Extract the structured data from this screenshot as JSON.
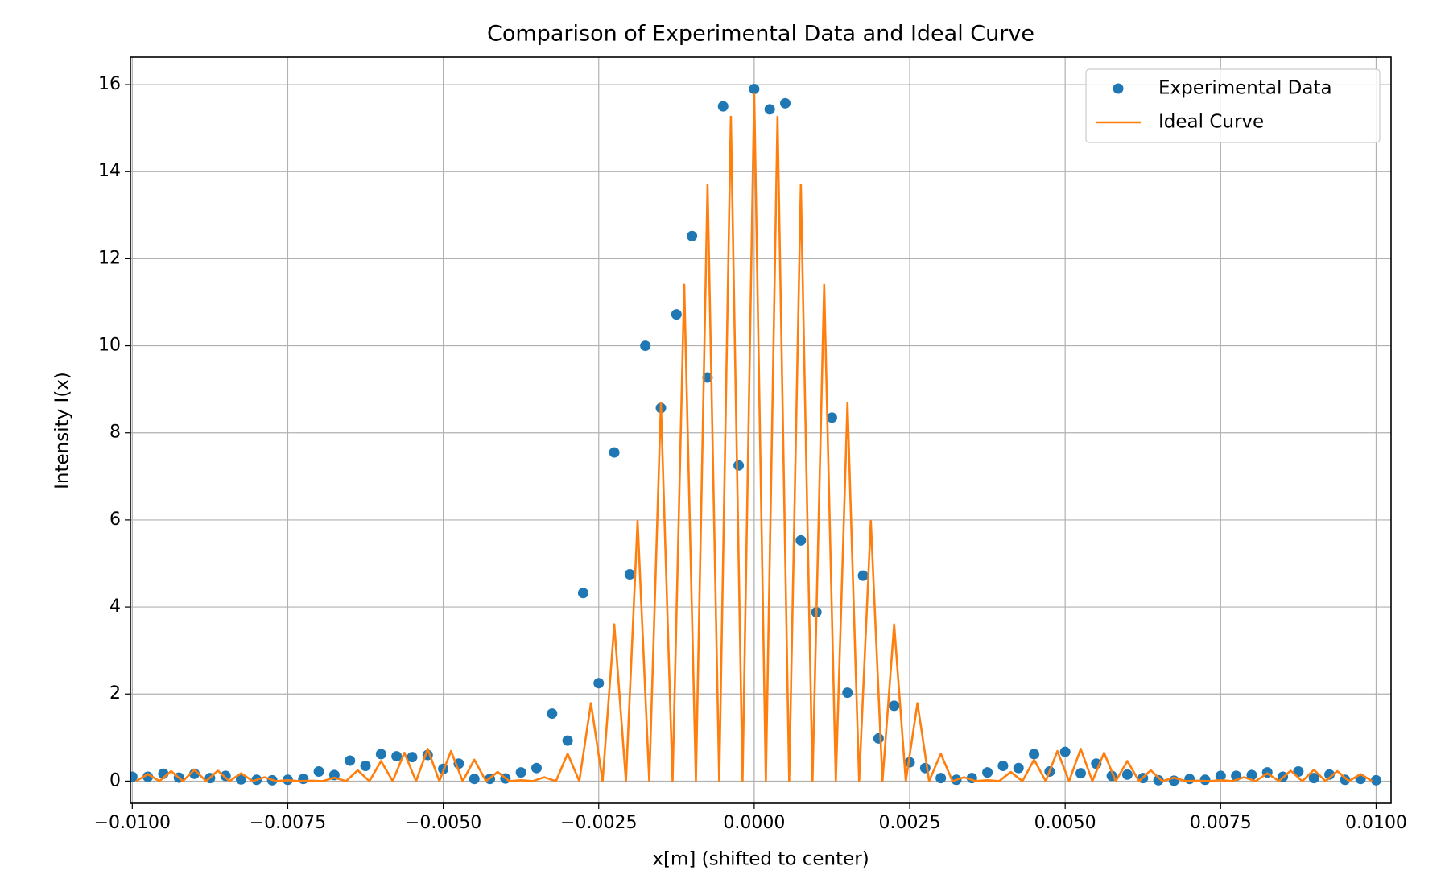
{
  "chart_data": {
    "type": "line",
    "title": "Comparison of Experimental Data and Ideal Curve",
    "x_label": "x[m] (shifted to center)",
    "y_label": "Intensity I(x)",
    "xlim": [
      -0.01003,
      0.01024
    ],
    "ylim": [
      -0.51,
      16.63
    ],
    "xticks": [
      {
        "value": -0.01,
        "label": "−0.0100"
      },
      {
        "value": -0.0075,
        "label": "−0.0075"
      },
      {
        "value": -0.005,
        "label": "−0.0050"
      },
      {
        "value": -0.0025,
        "label": "−0.0025"
      },
      {
        "value": 0,
        "label": "0.0000"
      },
      {
        "value": 0.0025,
        "label": "0.0025"
      },
      {
        "value": 0.005,
        "label": "0.0050"
      },
      {
        "value": 0.0075,
        "label": "0.0075"
      },
      {
        "value": 0.01,
        "label": "0.0100"
      }
    ],
    "yticks": [
      0,
      2,
      4,
      6,
      8,
      10,
      12,
      14,
      16
    ],
    "grid": true,
    "legend": "upper right",
    "series": [
      {
        "name": "Experimental Data",
        "color": "#1f77b4",
        "mode": "markers",
        "x": [
          -0.01,
          -0.00975,
          -0.0095,
          -0.00925,
          -0.009,
          -0.00875,
          -0.0085,
          -0.00825,
          -0.008,
          -0.00775,
          -0.0075,
          -0.00725,
          -0.007,
          -0.00675,
          -0.0065,
          -0.00625,
          -0.006,
          -0.00575,
          -0.0055,
          -0.00525,
          -0.005,
          -0.00475,
          -0.0045,
          -0.00425,
          -0.004,
          -0.00375,
          -0.0035,
          -0.00325,
          -0.003,
          -0.00275,
          -0.0025,
          -0.00225,
          -0.002,
          -0.00175,
          -0.0015,
          -0.00125,
          -0.001,
          -0.00075,
          -0.0005,
          -0.00025,
          0,
          0.00025,
          0.0005,
          0.00075,
          0.001,
          0.00125,
          0.0015,
          0.00175,
          0.002,
          0.00225,
          0.0025,
          0.00275,
          0.003,
          0.00325,
          0.0035,
          0.00375,
          0.004,
          0.00425,
          0.0045,
          0.00475,
          0.005,
          0.00525,
          0.0055,
          0.00575,
          0.006,
          0.00625,
          0.0065,
          0.00675,
          0.007,
          0.00725,
          0.0075,
          0.00775,
          0.008,
          0.00825,
          0.0085,
          0.00875,
          0.009,
          0.00925,
          0.0095,
          0.00975,
          0.01
        ],
        "values": [
          0.1,
          0.1,
          0.17,
          0.08,
          0.17,
          0.07,
          0.12,
          0.04,
          0.03,
          0.02,
          0.03,
          0.05,
          0.22,
          0.14,
          0.47,
          0.35,
          0.62,
          0.57,
          0.55,
          0.6,
          0.28,
          0.4,
          0.05,
          0.05,
          0.06,
          0.2,
          0.3,
          1.55,
          0.93,
          4.32,
          2.25,
          7.55,
          4.75,
          10.0,
          8.57,
          10.72,
          12.52,
          9.27,
          15.5,
          7.25,
          15.9,
          15.43,
          15.57,
          5.53,
          3.88,
          8.35,
          2.03,
          4.72,
          0.98,
          1.73,
          0.43,
          0.3,
          0.07,
          0.03,
          0.07,
          0.2,
          0.35,
          0.3,
          0.62,
          0.22,
          0.67,
          0.18,
          0.4,
          0.12,
          0.15,
          0.07,
          0.02,
          0.01,
          0.05,
          0.03,
          0.12,
          0.12,
          0.14,
          0.2,
          0.1,
          0.22,
          0.07,
          0.15,
          0.03,
          0.05,
          0.02
        ]
      },
      {
        "name": "Ideal Curve",
        "color": "#ff7f0e",
        "mode": "line",
        "x": [
          -0.0099375,
          -0.00975,
          -0.0095625,
          -0.009375,
          -0.0091875,
          -0.009,
          -0.0088125,
          -0.008625,
          -0.0084375,
          -0.00825,
          -0.0080625,
          -0.007875,
          -0.0076875,
          -0.0075,
          -0.0073125,
          -0.007125,
          -0.0069375,
          -0.00675,
          -0.0065625,
          -0.006375,
          -0.0061875,
          -0.006,
          -0.0058125,
          -0.005625,
          -0.0054375,
          -0.00525,
          -0.0050625,
          -0.004875,
          -0.0046875,
          -0.0045,
          -0.0043125,
          -0.004125,
          -0.0039375,
          -0.00375,
          -0.0035625,
          -0.003375,
          -0.0031875,
          -0.003,
          -0.0028125,
          -0.002625,
          -0.0024375,
          -0.00225,
          -0.0020625,
          -0.001875,
          -0.0016875,
          -0.0015,
          -0.0013125,
          -0.001125,
          -0.0009375,
          -0.00075,
          -0.0005625,
          -0.000375,
          -0.0001875,
          0,
          0.0001875,
          0.000375,
          0.0005625,
          0.00075,
          0.0009375,
          0.001125,
          0.0013125,
          0.0015,
          0.0016875,
          0.001875,
          0.0020625,
          0.00225,
          0.0024375,
          0.002625,
          0.0028125,
          0.003,
          0.0031875,
          0.003375,
          0.0035625,
          0.00375,
          0.0039375,
          0.004125,
          0.0043125,
          0.0045,
          0.0046875,
          0.004875,
          0.0050625,
          0.00525,
          0.0054375,
          0.005625,
          0.0058125,
          0.006,
          0.0061875,
          0.006375,
          0.0065625,
          0.00675,
          0.0069375,
          0.007125,
          0.0073125,
          0.0075,
          0.0076875,
          0.007875,
          0.0080625,
          0.00825,
          0.0084375,
          0.008625,
          0.0088125,
          0.009,
          0.0091875,
          0.009375,
          0.0095625,
          0.00975,
          0.0099375
        ],
        "values": [
          0,
          0.16,
          0,
          0.23,
          0,
          0.26,
          0,
          0.24,
          0,
          0.18,
          0,
          0.09,
          0,
          0.02,
          0,
          0.01,
          0,
          0.08,
          0,
          0.25,
          0,
          0.46,
          0,
          0.65,
          0,
          0.74,
          0,
          0.69,
          0,
          0.49,
          0,
          0.21,
          0,
          0.02,
          0,
          0.09,
          0,
          0.63,
          0,
          1.79,
          0,
          3.6,
          0,
          5.98,
          0,
          8.69,
          0,
          11.4,
          0,
          13.7,
          0,
          15.26,
          0,
          15.8,
          0,
          15.26,
          0,
          13.7,
          0,
          11.4,
          0,
          8.69,
          0,
          5.98,
          0,
          3.6,
          0,
          1.79,
          0,
          0.63,
          0,
          0.09,
          0,
          0.02,
          0,
          0.21,
          0,
          0.49,
          0,
          0.69,
          0,
          0.74,
          0,
          0.65,
          0,
          0.46,
          0,
          0.25,
          0,
          0.08,
          0,
          0.01,
          0,
          0.02,
          0,
          0.09,
          0,
          0.18,
          0,
          0.24,
          0,
          0.26,
          0,
          0.23,
          0,
          0.16,
          0
        ]
      }
    ]
  }
}
